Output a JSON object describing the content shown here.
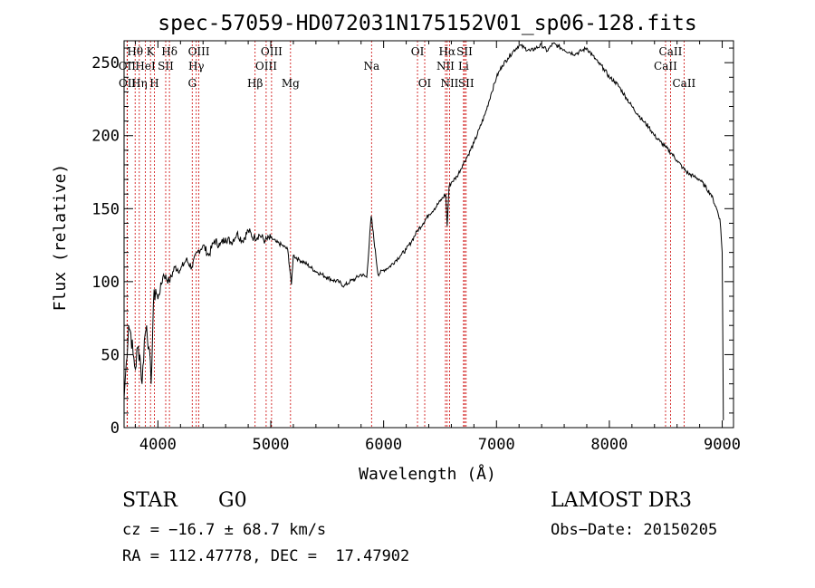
{
  "chart_data": {
    "type": "line",
    "title": "spec-57059-HD072031N175152V01_sp06-128.fits",
    "xlabel": "Wavelength (Å)",
    "ylabel": "Flux (relative)",
    "xlim": [
      3700,
      9100
    ],
    "ylim": [
      0,
      265
    ],
    "x_ticks": [
      4000,
      5000,
      6000,
      7000,
      8000,
      9000
    ],
    "y_ticks": [
      0,
      50,
      100,
      150,
      200,
      250
    ],
    "grid": false,
    "series": [
      {
        "name": "flux",
        "x": [
          3700,
          3720,
          3740,
          3760,
          3780,
          3800,
          3820,
          3840,
          3860,
          3880,
          3900,
          3920,
          3940,
          3960,
          3980,
          4000,
          4050,
          4100,
          4150,
          4200,
          4250,
          4300,
          4350,
          4400,
          4450,
          4500,
          4550,
          4600,
          4650,
          4700,
          4750,
          4800,
          4850,
          4900,
          4950,
          5000,
          5050,
          5100,
          5150,
          5183,
          5200,
          5250,
          5300,
          5350,
          5400,
          5450,
          5500,
          5550,
          5600,
          5650,
          5700,
          5750,
          5800,
          5850,
          5890,
          5950,
          6000,
          6050,
          6100,
          6150,
          6200,
          6250,
          6300,
          6350,
          6400,
          6450,
          6500,
          6550,
          6563,
          6580,
          6600,
          6650,
          6700,
          6750,
          6800,
          6850,
          6900,
          6950,
          7000,
          7050,
          7100,
          7150,
          7200,
          7250,
          7300,
          7350,
          7400,
          7450,
          7500,
          7550,
          7600,
          7650,
          7700,
          7750,
          7800,
          7850,
          7900,
          7950,
          8000,
          8050,
          8100,
          8150,
          8200,
          8250,
          8300,
          8350,
          8400,
          8450,
          8500,
          8550,
          8600,
          8650,
          8700,
          8750,
          8800,
          8850,
          8900,
          8950,
          8980,
          9000,
          9010
        ],
        "y": [
          20,
          45,
          70,
          65,
          50,
          40,
          55,
          50,
          30,
          60,
          70,
          55,
          30,
          85,
          95,
          88,
          105,
          100,
          110,
          108,
          115,
          110,
          120,
          125,
          118,
          128,
          125,
          130,
          127,
          133,
          128,
          135,
          130,
          132,
          128,
          130,
          127,
          125,
          122,
          98,
          118,
          115,
          113,
          110,
          107,
          105,
          103,
          101,
          100,
          97,
          100,
          102,
          105,
          103,
          145,
          105,
          108,
          110,
          114,
          118,
          122,
          128,
          135,
          140,
          146,
          150,
          155,
          160,
          138,
          165,
          168,
          172,
          180,
          187,
          195,
          205,
          215,
          228,
          240,
          248,
          253,
          258,
          262,
          260,
          258,
          260,
          262,
          258,
          263,
          261,
          259,
          257,
          256,
          258,
          260,
          255,
          250,
          246,
          240,
          237,
          232,
          226,
          220,
          215,
          210,
          206,
          200,
          196,
          192,
          188,
          183,
          178,
          174,
          172,
          170,
          165,
          160,
          150,
          143,
          120,
          5
        ]
      }
    ],
    "line_markers": [
      {
        "label": "Hθ",
        "wavelength": 3798,
        "row": 0
      },
      {
        "label": "OII",
        "wavelength": 3727,
        "row": 1
      },
      {
        "label": "OII",
        "wavelength": 3729,
        "row": 2
      },
      {
        "label": "Hη",
        "wavelength": 3835,
        "row": 2
      },
      {
        "label": "K",
        "wavelength": 3934,
        "row": 0
      },
      {
        "label": "HeI",
        "wavelength": 3889,
        "row": 1
      },
      {
        "label": "H",
        "wavelength": 3969,
        "row": 2
      },
      {
        "label": "SII",
        "wavelength": 4069,
        "row": 1
      },
      {
        "label": "Hδ",
        "wavelength": 4102,
        "row": 0
      },
      {
        "label": "OIII",
        "wavelength": 4363,
        "row": 0
      },
      {
        "label": "Hγ",
        "wavelength": 4340,
        "row": 1
      },
      {
        "label": "G",
        "wavelength": 4304,
        "row": 2
      },
      {
        "label": "Hβ",
        "wavelength": 4861,
        "row": 2
      },
      {
        "label": "OIII",
        "wavelength": 5007,
        "row": 0
      },
      {
        "label": "OIII",
        "wavelength": 4959,
        "row": 1
      },
      {
        "label": "Mg",
        "wavelength": 5175,
        "row": 2
      },
      {
        "label": "Na",
        "wavelength": 5893,
        "row": 1
      },
      {
        "label": "OI",
        "wavelength": 6300,
        "row": 0
      },
      {
        "label": "OI",
        "wavelength": 6364,
        "row": 2
      },
      {
        "label": "Hα",
        "wavelength": 6563,
        "row": 0
      },
      {
        "label": "NII",
        "wavelength": 6548,
        "row": 1
      },
      {
        "label": "NII",
        "wavelength": 6584,
        "row": 2
      },
      {
        "label": "SII",
        "wavelength": 6717,
        "row": 0
      },
      {
        "label": "Li",
        "wavelength": 6708,
        "row": 1
      },
      {
        "label": "SII",
        "wavelength": 6731,
        "row": 2
      },
      {
        "label": "CaII",
        "wavelength": 8542,
        "row": 0
      },
      {
        "label": "CaII",
        "wavelength": 8498,
        "row": 1
      },
      {
        "label": "CaII",
        "wavelength": 8662,
        "row": 2
      }
    ]
  },
  "info": {
    "object_class": "STAR",
    "subclass": "G0",
    "survey": "LAMOST DR3",
    "redshift_line": "cz = −16.7 ± 68.7 km/s",
    "obs_date_line": "Obs−Date: 20150205",
    "coords_line": "RA = 112.47778, DEC =  17.47902"
  },
  "colors": {
    "line": "#000000",
    "marker": "#cc0000",
    "axes": "#000000"
  }
}
